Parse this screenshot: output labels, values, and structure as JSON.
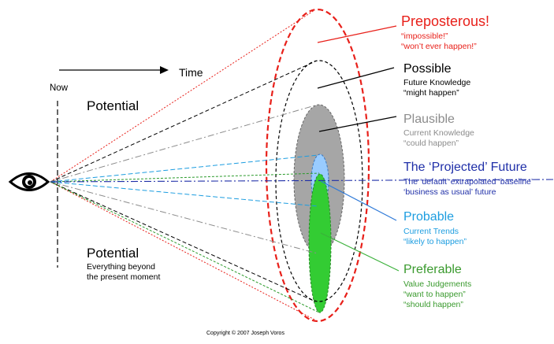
{
  "labels": {
    "now": "Now",
    "time": "Time",
    "potential_top": "Potential",
    "potential_bottom": "Potential",
    "potential_bottom_sub": [
      "Everything beyond",
      "the present moment"
    ],
    "copyright": "Copyright © 2007 Joseph Voros"
  },
  "futures": [
    {
      "key": "preposterous",
      "title": "Preposterous!",
      "lines": [
        "“impossible!”",
        "“won’t ever happen!”"
      ],
      "color": "#e8201a"
    },
    {
      "key": "possible",
      "title": "Possible",
      "lines": [
        "Future Knowledge",
        "“might happen”"
      ],
      "color": "#000000"
    },
    {
      "key": "plausible",
      "title": "Plausible",
      "lines": [
        "Current Knowledge",
        "“could happen”"
      ],
      "color": "#8c8c8c"
    },
    {
      "key": "projected",
      "title": "The ‘Projected’ Future",
      "lines": [
        "The ‘default’ extrapolated ‘baseline’",
        "‘business as usual’ future"
      ],
      "color": "#1f2fa8"
    },
    {
      "key": "probable",
      "title": "Probable",
      "lines": [
        "Current Trends",
        "“likely to happen”"
      ],
      "color": "#1c9de0"
    },
    {
      "key": "preferable",
      "title": "Preferable",
      "lines": [
        "Value Judgements",
        "“want to happen”",
        "“should happen”"
      ],
      "color": "#3a9a2e"
    }
  ],
  "colors": {
    "preposterous": "#e8201a",
    "possible": "#000000",
    "plausible_fill": "#a6a6a6",
    "projected": "#1f2fa8",
    "probable_fill": "#99ccff",
    "preferable_fill": "#33cc33",
    "preferable_line": "#2a9a2a"
  }
}
